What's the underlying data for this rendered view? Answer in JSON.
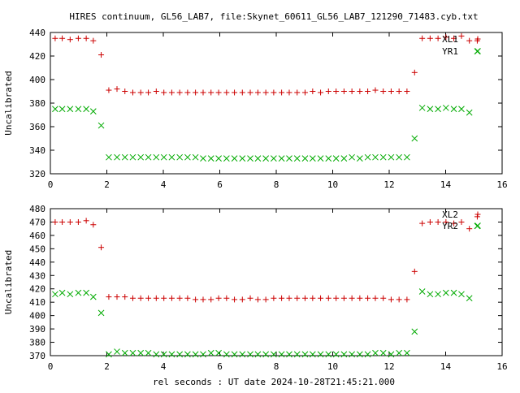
{
  "title": "HIRES continuum, GL56_LAB7, file:Skynet_60611_GL56_LAB7_121290_71483.cyb.txt",
  "xlabel": "rel seconds : UT date 2024-10-28T21:45:21.000",
  "colors": {
    "x_series": "#cc0000",
    "y_series": "#00aa00",
    "axes": "#000000"
  },
  "marker_symbols": {
    "x_series": "plus",
    "y_series": "cross"
  },
  "chart_data": [
    {
      "type": "scatter",
      "title": "",
      "xlabel": "",
      "ylabel": "Uncalibrated",
      "xlim": [
        0,
        16
      ],
      "ylim": [
        320,
        440
      ],
      "xticks": [
        0,
        2,
        4,
        6,
        8,
        10,
        12,
        14,
        16
      ],
      "yticks": [
        320,
        340,
        360,
        380,
        400,
        420,
        440
      ],
      "grid": false,
      "legend": "top-right",
      "series": [
        {
          "name": "XL1",
          "color": "#cc0000",
          "x": [
            0.17,
            0.42,
            0.7,
            0.99,
            1.27,
            1.52,
            1.8,
            2.07,
            2.36,
            2.64,
            2.92,
            3.2,
            3.47,
            3.75,
            4.02,
            4.3,
            4.58,
            4.86,
            5.14,
            5.41,
            5.69,
            5.96,
            6.24,
            6.52,
            6.8,
            7.08,
            7.35,
            7.63,
            7.91,
            8.19,
            8.46,
            8.74,
            9.02,
            9.29,
            9.57,
            9.85,
            10.12,
            10.4,
            10.68,
            10.96,
            11.24,
            11.51,
            11.79,
            12.07,
            12.35,
            12.63,
            12.9,
            13.17,
            13.45,
            13.73,
            14.01,
            14.29,
            14.56,
            14.84,
            15.12
          ],
          "y": [
            435,
            435,
            434,
            435,
            435,
            433,
            421,
            391,
            392,
            390,
            389,
            389,
            389,
            390,
            389,
            389,
            389,
            389,
            389,
            389,
            389,
            389,
            389,
            389,
            389,
            389,
            389,
            389,
            389,
            389,
            389,
            389,
            389,
            390,
            389,
            390,
            390,
            390,
            390,
            390,
            390,
            391,
            390,
            390,
            390,
            390,
            406,
            435,
            435,
            435,
            436,
            435,
            437,
            433,
            433
          ]
        },
        {
          "name": "YR1",
          "color": "#00aa00",
          "x": [
            0.17,
            0.42,
            0.7,
            0.99,
            1.27,
            1.52,
            1.8,
            2.07,
            2.36,
            2.64,
            2.92,
            3.2,
            3.47,
            3.75,
            4.02,
            4.3,
            4.58,
            4.86,
            5.14,
            5.41,
            5.69,
            5.96,
            6.24,
            6.52,
            6.8,
            7.08,
            7.35,
            7.63,
            7.91,
            8.19,
            8.46,
            8.74,
            9.02,
            9.29,
            9.57,
            9.85,
            10.12,
            10.4,
            10.68,
            10.96,
            11.24,
            11.51,
            11.79,
            12.07,
            12.35,
            12.63,
            12.9,
            13.17,
            13.45,
            13.73,
            14.01,
            14.29,
            14.56,
            14.84,
            15.12
          ],
          "y": [
            375,
            375,
            375,
            375,
            375,
            373,
            361,
            334,
            334,
            334,
            334,
            334,
            334,
            334,
            334,
            334,
            334,
            334,
            334,
            333,
            333,
            333,
            333,
            333,
            333,
            333,
            333,
            333,
            333,
            333,
            333,
            333,
            333,
            333,
            333,
            333,
            333,
            333,
            334,
            333,
            334,
            334,
            334,
            334,
            334,
            334,
            350,
            376,
            375,
            375,
            376,
            375,
            375,
            372,
            424
          ]
        }
      ]
    },
    {
      "type": "scatter",
      "title": "",
      "xlabel": "rel seconds : UT date 2024-10-28T21:45:21.000",
      "ylabel": "Uncalibrated",
      "xlim": [
        0,
        16
      ],
      "ylim": [
        370,
        480
      ],
      "xticks": [
        0,
        2,
        4,
        6,
        8,
        10,
        12,
        14,
        16
      ],
      "yticks": [
        370,
        380,
        390,
        400,
        410,
        420,
        430,
        440,
        450,
        460,
        470,
        480
      ],
      "grid": false,
      "legend": "top-right",
      "series": [
        {
          "name": "XL2",
          "color": "#cc0000",
          "x": [
            0.17,
            0.42,
            0.7,
            0.99,
            1.27,
            1.52,
            1.8,
            2.07,
            2.36,
            2.64,
            2.92,
            3.2,
            3.47,
            3.75,
            4.02,
            4.3,
            4.58,
            4.86,
            5.14,
            5.41,
            5.69,
            5.96,
            6.24,
            6.52,
            6.8,
            7.08,
            7.35,
            7.63,
            7.91,
            8.19,
            8.46,
            8.74,
            9.02,
            9.29,
            9.57,
            9.85,
            10.12,
            10.4,
            10.68,
            10.96,
            11.24,
            11.51,
            11.79,
            12.07,
            12.35,
            12.63,
            12.9,
            13.17,
            13.45,
            13.73,
            14.01,
            14.29,
            14.56,
            14.84,
            15.12
          ],
          "y": [
            470,
            470,
            470,
            470,
            471,
            468,
            451,
            414,
            414,
            414,
            413,
            413,
            413,
            413,
            413,
            413,
            413,
            413,
            412,
            412,
            412,
            413,
            413,
            412,
            412,
            413,
            412,
            412,
            413,
            413,
            413,
            413,
            413,
            413,
            413,
            413,
            413,
            413,
            413,
            413,
            413,
            413,
            413,
            412,
            412,
            412,
            433,
            469,
            470,
            470,
            470,
            469,
            470,
            465,
            474
          ]
        },
        {
          "name": "YR2",
          "color": "#00aa00",
          "x": [
            0.17,
            0.42,
            0.7,
            0.99,
            1.27,
            1.52,
            1.8,
            2.07,
            2.36,
            2.64,
            2.92,
            3.2,
            3.47,
            3.75,
            4.02,
            4.3,
            4.58,
            4.86,
            5.14,
            5.41,
            5.69,
            5.96,
            6.24,
            6.52,
            6.8,
            7.08,
            7.35,
            7.63,
            7.91,
            8.19,
            8.46,
            8.74,
            9.02,
            9.29,
            9.57,
            9.85,
            10.12,
            10.4,
            10.68,
            10.96,
            11.24,
            11.51,
            11.79,
            12.07,
            12.35,
            12.63,
            12.9,
            13.17,
            13.45,
            13.73,
            14.01,
            14.29,
            14.56,
            14.84,
            15.12
          ],
          "y": [
            416,
            417,
            416,
            417,
            417,
            414,
            402,
            371,
            373,
            372,
            372,
            372,
            372,
            371,
            371,
            371,
            371,
            371,
            371,
            371,
            372,
            372,
            371,
            371,
            371,
            371,
            371,
            371,
            371,
            371,
            371,
            371,
            371,
            371,
            371,
            371,
            371,
            371,
            371,
            371,
            371,
            372,
            372,
            371,
            372,
            372,
            388,
            418,
            416,
            416,
            417,
            417,
            416,
            413,
            467
          ]
        }
      ]
    }
  ]
}
